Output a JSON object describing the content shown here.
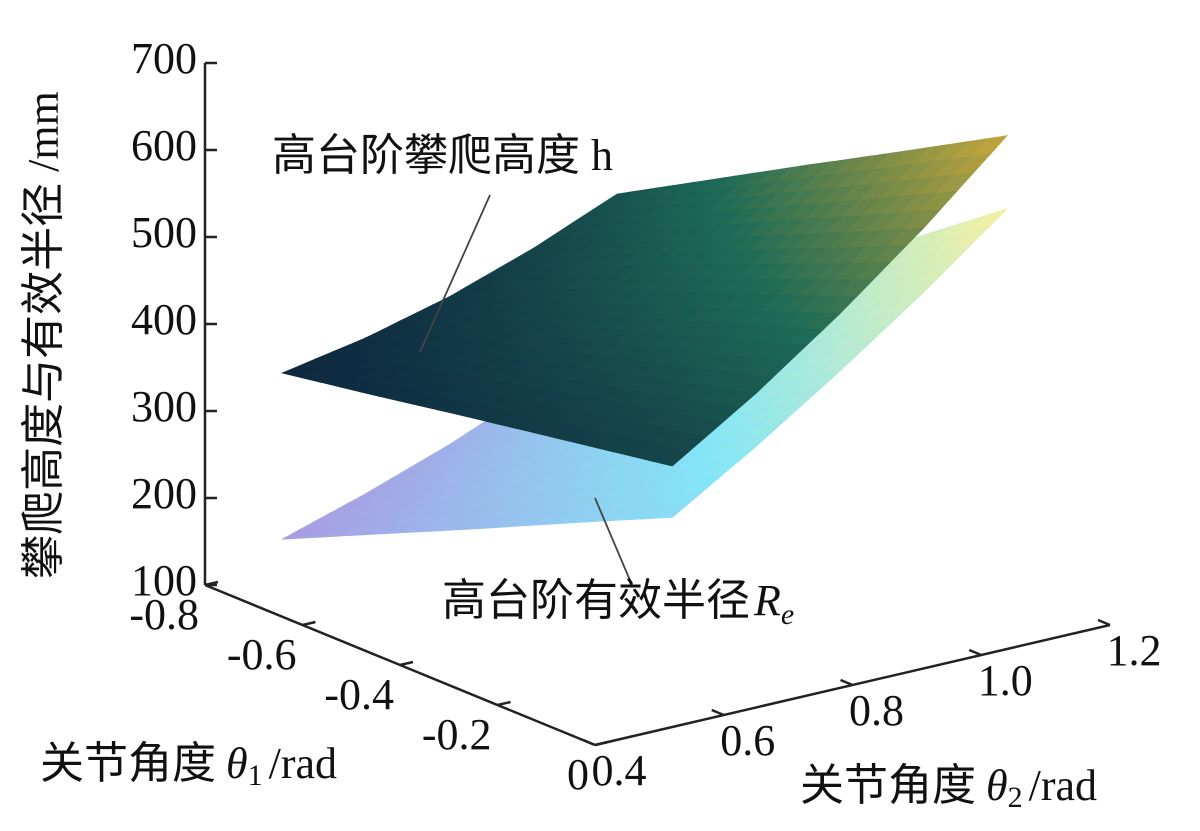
{
  "chart_data": {
    "type": "surface3d",
    "xlabel": {
      "text": "关节角度",
      "symbol": "θ",
      "subscript": "1",
      "unit": "/rad"
    },
    "ylabel": {
      "text": "关节角度",
      "symbol": "θ",
      "subscript": "2",
      "unit": "/rad"
    },
    "zlabel": "攀爬高度与有效半径 /mm",
    "x": [
      -0.8,
      -0.6,
      -0.4,
      -0.2,
      0
    ],
    "y": [
      0.52,
      0.65,
      0.78,
      0.91,
      1.04
    ],
    "xlim": [
      -0.8,
      0
    ],
    "ylim": [
      0.4,
      1.2
    ],
    "zlim": [
      100,
      700
    ],
    "xticks": [
      -0.8,
      -0.6,
      -0.4,
      -0.2,
      0
    ],
    "yticks": [
      0.4,
      0.6,
      0.8,
      {
        "value": 1.0,
        "label": "1.0"
      },
      1.2
    ],
    "zticks": [
      100,
      200,
      300,
      400,
      500,
      600,
      700
    ],
    "series": [
      {
        "name": "高台阶有效半径",
        "symbol": "R",
        "subscript": "e",
        "colormap": [
          "#a99be2",
          "#84e6f8",
          "#f6f0a0"
        ],
        "values": [
          [
            132,
            162,
            196,
            236,
            280
          ],
          [
            184,
            221,
            263,
            310,
            362
          ],
          [
            236,
            281,
            330,
            384,
            443
          ],
          [
            289,
            340,
            397,
            458,
            525
          ],
          [
            341,
            400,
            464,
            532,
            606
          ]
        ]
      },
      {
        "name": "高台阶攀爬高度 h",
        "colormap": [
          "#0e2740",
          "#1e6b56",
          "#c9a83c"
        ],
        "values": [
          [
            323,
            341,
            366,
            399,
            439
          ],
          [
            342,
            371,
            407,
            451,
            502
          ],
          [
            362,
            401,
            448,
            503,
            565
          ],
          [
            381,
            431,
            489,
            554,
            627
          ],
          [
            400,
            461,
            530,
            606,
            690
          ]
        ]
      }
    ]
  }
}
